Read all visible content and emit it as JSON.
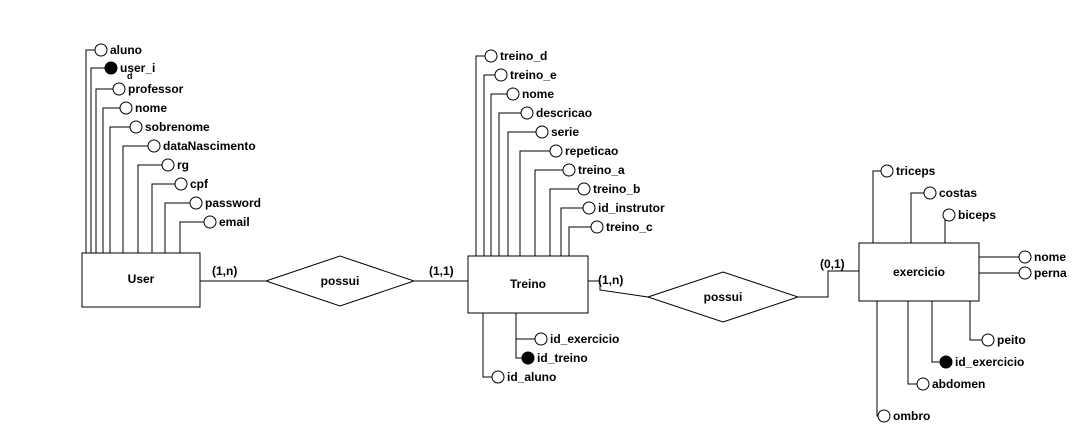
{
  "entities": [
    {
      "id": "user",
      "label": "User"
    },
    {
      "id": "treino",
      "label": "Treino"
    },
    {
      "id": "exercicio",
      "label": "exercicio"
    }
  ],
  "relationships": [
    {
      "id": "rel1",
      "label": "possui",
      "card_left": "(1,n)",
      "card_right": "(1,1)"
    },
    {
      "id": "rel2",
      "label": "possui",
      "card_left": "(1,n)",
      "card_right": "(0,1)"
    }
  ],
  "attributes": {
    "user": [
      {
        "label": "aluno",
        "key": false
      },
      {
        "label": "user_i",
        "label_line2": "d",
        "key": true
      },
      {
        "label": "professor",
        "key": false
      },
      {
        "label": "nome",
        "key": false
      },
      {
        "label": "sobrenome",
        "key": false
      },
      {
        "label": "dataNascimento",
        "key": false
      },
      {
        "label": "rg",
        "key": false
      },
      {
        "label": "cpf",
        "key": false
      },
      {
        "label": "password",
        "key": false
      },
      {
        "label": "email",
        "key": false
      }
    ],
    "treino_top": [
      {
        "label": "treino_d",
        "key": false
      },
      {
        "label": "treino_e",
        "key": false
      },
      {
        "label": "nome",
        "key": false
      },
      {
        "label": "descricao",
        "key": false
      },
      {
        "label": "serie",
        "key": false
      },
      {
        "label": "repeticao",
        "key": false
      },
      {
        "label": "treino_a",
        "key": false
      },
      {
        "label": "treino_b",
        "key": false
      },
      {
        "label": "id_instrutor",
        "key": false
      },
      {
        "label": "treino_c",
        "key": false
      }
    ],
    "treino_bottom": [
      {
        "label": "id_exercicio",
        "key": false
      },
      {
        "label": "id_treino",
        "key": true
      },
      {
        "label": "id_aluno",
        "key": false
      }
    ],
    "exercicio_top": [
      {
        "label": "triceps",
        "key": false
      },
      {
        "label": "costas",
        "key": false
      },
      {
        "label": "biceps",
        "key": false
      }
    ],
    "exercicio_right": [
      {
        "label": "nome",
        "key": false
      },
      {
        "label": "perna",
        "key": false
      }
    ],
    "exercicio_bottom": [
      {
        "label": "peito",
        "key": false
      },
      {
        "label": "id_exercicio",
        "key": true
      },
      {
        "label": "abdomen",
        "key": false
      },
      {
        "label": "ombro",
        "key": false
      }
    ]
  }
}
